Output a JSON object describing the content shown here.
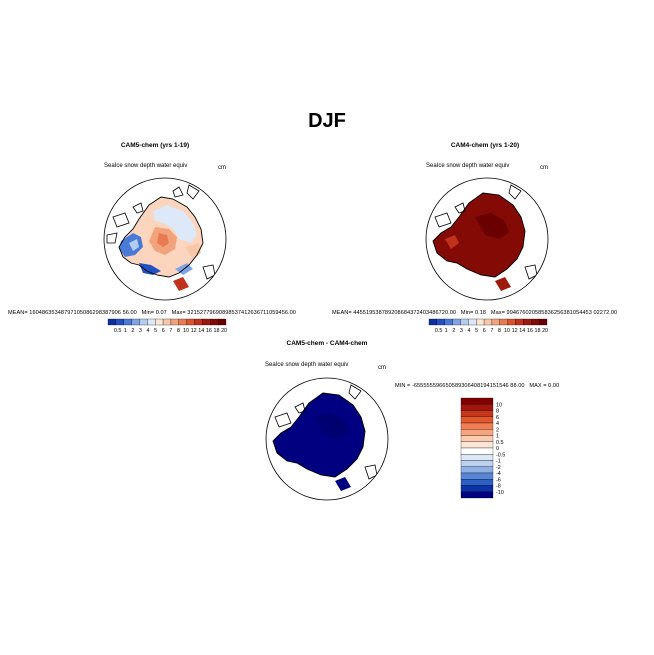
{
  "page_title": "DJF",
  "panels": [
    {
      "id": "cam5",
      "title": "CAM5-chem (yrs 1-19)",
      "variable": "SeaIce snow depth water equiv",
      "units": "cm",
      "mean_label": "MEAN=",
      "mean_value": "16048635348797105086298387906 56.00",
      "min_label": "Min=",
      "min_value": "0.07",
      "max_label": "Max=",
      "max_value": "32152779690898537412636711059456.00",
      "colorbar": [
        "0.5",
        "1",
        "2",
        "3",
        "4",
        "5",
        "6",
        "7",
        "8",
        "10",
        "12",
        "14",
        "16",
        "18",
        "20"
      ]
    },
    {
      "id": "cam4",
      "title": "CAM4-chem (yrs 1-20)",
      "variable": "SeaIce snow depth water equiv",
      "units": "cm",
      "mean_label": "MEAN=",
      "mean_value": "445519538789208684372403486720.00",
      "min_label": "Min=",
      "min_value": "0.18",
      "max_label": "Max=",
      "max_value": "994676020585836256381054453 02272.00",
      "colorbar": [
        "0.5",
        "1",
        "2",
        "3",
        "4",
        "5",
        "6",
        "7",
        "8",
        "10",
        "12",
        "14",
        "16",
        "18",
        "20"
      ]
    },
    {
      "id": "diff",
      "title": "CAM5-chem - CAM4-chem",
      "variable": "SeaIce snow depth water equiv",
      "units": "cm",
      "min_label": "MIN =",
      "min_value": "-655555596650589306408194151546 88.00",
      "max_label": "MAX =",
      "max_value": "0.00",
      "colorbar": [
        "10",
        "8",
        "6",
        "4",
        "2",
        "1",
        "0.5",
        "0",
        "-0.5",
        "-1",
        "-2",
        "-4",
        "-6",
        "-8",
        "-10"
      ]
    }
  ],
  "colors": {
    "seq_scale": [
      "#0a2fa3",
      "#2150c4",
      "#4a7ad8",
      "#7ea4e6",
      "#b3ccf0",
      "#dde8f8",
      "#fbe6d8",
      "#f8c8a8",
      "#f3a37c",
      "#ea7a52",
      "#d9532f",
      "#c0321b",
      "#a01a0c",
      "#840a05",
      "#6a0000"
    ],
    "div_scale": [
      "#800000",
      "#a3160b",
      "#c8361a",
      "#e4582f",
      "#f37d52",
      "#f8a47f",
      "#fbccb0",
      "#fde6d8",
      "#ffffff",
      "#dde8f7",
      "#bcd0ef",
      "#8eb0e5",
      "#5a86d8",
      "#2d5fc6",
      "#0a33a8",
      "#000080"
    ],
    "land": "#ffffff",
    "outline": "#000000"
  }
}
